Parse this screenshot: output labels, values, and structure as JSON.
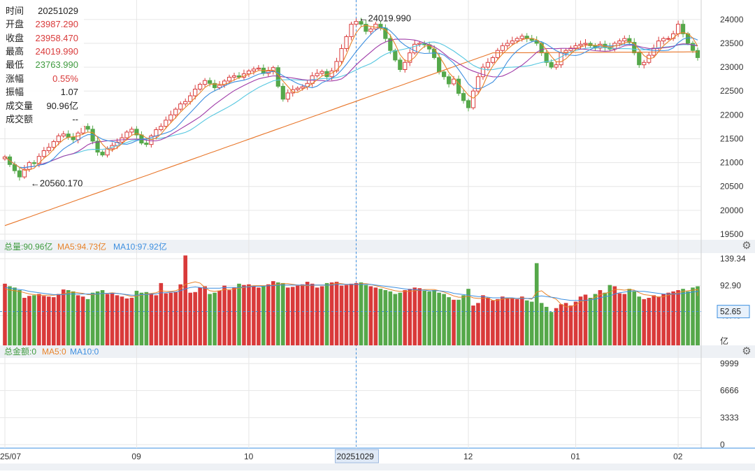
{
  "colors": {
    "up": "#d93a3a",
    "down": "#55a84a",
    "ma_orange": "#e8832a",
    "ma_blue": "#3d8fe0",
    "ma_purple": "#a03ca8",
    "ma_cyan": "#56c7e0",
    "ma_long": "#e8762a",
    "crosshair": "#3d8fe0",
    "grid": "#e6e6e6",
    "panel_bg": "#eef1f5"
  },
  "info_panel": {
    "rows": [
      {
        "label": "时间",
        "value": "20251029",
        "tone": "neutral"
      },
      {
        "label": "开盘",
        "value": "23987.290",
        "tone": "red"
      },
      {
        "label": "收盘",
        "value": "23958.470",
        "tone": "red"
      },
      {
        "label": "最高",
        "value": "24019.990",
        "tone": "red"
      },
      {
        "label": "最低",
        "value": "23763.990",
        "tone": "green"
      },
      {
        "label": "涨幅",
        "value": "0.55%",
        "tone": "red"
      },
      {
        "label": "振幅",
        "value": "1.07",
        "tone": "neutral"
      },
      {
        "label": "成交量",
        "value": "90.96亿",
        "tone": "neutral"
      },
      {
        "label": "成交额",
        "value": "--",
        "tone": "neutral"
      }
    ]
  },
  "volume_header": {
    "total": "总量:90.96亿",
    "ma5": "MA5:94.73亿",
    "ma10": "MA10:97.92亿"
  },
  "amount_header": {
    "total": "总金额:0",
    "ma5": "MA5:0",
    "ma10": "MA10:0"
  },
  "annotations": {
    "high": "24019.990",
    "low": "20560.170",
    "crosshair_date": "20251029",
    "volume_cursor": "52.65"
  },
  "chart_data": [
    {
      "type": "candlestick",
      "ylim": [
        19500,
        24100
      ],
      "y_ticks": [
        "24000",
        "23500",
        "23000",
        "22500",
        "22000",
        "21500",
        "21000",
        "20500",
        "20000",
        "19500"
      ],
      "x_tick_labels": [
        "25/07",
        "09",
        "10",
        "20251029",
        "12",
        "01",
        "02"
      ],
      "grid": true,
      "series_close": [
        21120,
        20960,
        20830,
        20700,
        20860,
        21000,
        20980,
        21130,
        21250,
        21320,
        21440,
        21560,
        21600,
        21530,
        21480,
        21620,
        21760,
        21700,
        21450,
        21220,
        21160,
        21290,
        21360,
        21430,
        21520,
        21640,
        21700,
        21580,
        21410,
        21380,
        21560,
        21690,
        21760,
        21890,
        22000,
        22120,
        22230,
        22280,
        22400,
        22540,
        22640,
        22720,
        22660,
        22570,
        22620,
        22710,
        22790,
        22820,
        22790,
        22860,
        22920,
        22960,
        22980,
        22870,
        22920,
        22990,
        22600,
        22330,
        22460,
        22530,
        22560,
        22590,
        22660,
        22820,
        22870,
        22910,
        22800,
        22920,
        23120,
        23390,
        23640,
        23900,
        23958,
        23900,
        23750,
        23800,
        23900,
        23820,
        23600,
        23350,
        23150,
        22950,
        23100,
        23300,
        23480,
        23500,
        23470,
        23380,
        23200,
        22900,
        22800,
        22650,
        22750,
        22450,
        22300,
        22150,
        22500,
        22800,
        23000,
        23100,
        23200,
        23350,
        23450,
        23500,
        23550,
        23600,
        23650,
        23600,
        23560,
        23500,
        23300,
        23100,
        23000,
        23050,
        23300,
        23350,
        23400,
        23450,
        23480,
        23500,
        23450,
        23400,
        23480,
        23420,
        23380,
        23500,
        23550,
        23600,
        23520,
        23300,
        23050,
        23100,
        23250,
        23400,
        23550,
        23600,
        23600,
        23700,
        23900,
        23700,
        23500,
        23350,
        23200
      ],
      "annotations": [
        "←24019.990",
        "←20560.170"
      ]
    },
    {
      "type": "bar",
      "title": "总量:90.96亿",
      "y_ticks": [
        "139.34",
        "92.90",
        "46.45",
        "亿"
      ],
      "ylim": [
        0,
        139.34
      ],
      "values": [
        96,
        92,
        90,
        86,
        74,
        77,
        78,
        80,
        77,
        76,
        75,
        80,
        87,
        86,
        84,
        78,
        76,
        72,
        82,
        84,
        86,
        80,
        81,
        78,
        76,
        73,
        74,
        85,
        82,
        83,
        80,
        78,
        97,
        81,
        82,
        83,
        95,
        140,
        82,
        83,
        90,
        92,
        80,
        82,
        85,
        93,
        86,
        90,
        96,
        94,
        95,
        92,
        90,
        93,
        95,
        100,
        98,
        97,
        90,
        91,
        93,
        95,
        99,
        96,
        90,
        92,
        97,
        98,
        99,
        93,
        94,
        96,
        97,
        98,
        94,
        92,
        90,
        88,
        86,
        84,
        80,
        82,
        86,
        88,
        90,
        89,
        85,
        84,
        86,
        82,
        80,
        75,
        71,
        71,
        78,
        88,
        62,
        66,
        78,
        74,
        70,
        72,
        76,
        74,
        73,
        72,
        76,
        70,
        68,
        128,
        66,
        60,
        52,
        58,
        64,
        66,
        62,
        68,
        76,
        79,
        74,
        80,
        86,
        82,
        94,
        92,
        81,
        80,
        88,
        84,
        76,
        72,
        74,
        78,
        76,
        80,
        82,
        84,
        86,
        88,
        84,
        90,
        86,
        92,
        85,
        34
      ],
      "ma5": [
        88,
        86,
        85,
        84,
        82,
        80,
        79,
        78,
        78,
        78,
        78,
        79,
        80,
        82,
        83,
        82,
        81,
        79,
        79,
        80,
        81,
        81,
        82,
        81,
        80,
        78,
        76,
        77,
        78,
        80,
        81,
        82,
        85,
        84,
        84,
        85,
        88,
        95,
        97,
        99,
        97,
        90,
        85,
        84,
        85,
        87,
        87,
        88,
        89,
        90,
        92,
        93,
        93,
        93,
        93,
        94,
        95,
        96,
        96,
        95,
        94,
        93,
        93,
        94,
        94,
        94,
        94,
        95,
        97,
        96,
        95,
        95,
        95,
        96,
        96,
        95,
        93,
        91,
        89,
        87,
        85,
        84,
        84,
        84,
        85,
        86,
        87,
        87,
        87,
        85,
        83,
        80,
        77,
        75,
        75,
        77,
        74,
        73,
        73,
        74,
        70,
        70,
        72,
        73,
        73,
        73,
        74,
        73,
        72,
        83,
        85,
        79,
        75,
        72,
        64,
        60,
        60,
        63,
        68,
        70,
        71,
        75,
        79,
        81,
        83,
        87,
        87,
        86,
        87,
        86,
        82,
        79,
        78,
        77,
        75,
        76,
        78,
        80,
        82,
        84,
        85,
        86,
        87,
        88,
        87,
        77
      ],
      "ma10": [
        90,
        89,
        88,
        87,
        86,
        84,
        83,
        82,
        81,
        80,
        79,
        79,
        79,
        80,
        80,
        80,
        80,
        80,
        80,
        80,
        81,
        81,
        81,
        81,
        80,
        79,
        78,
        78,
        79,
        79,
        80,
        80,
        82,
        82,
        83,
        83,
        85,
        88,
        90,
        91,
        90,
        89,
        89,
        89,
        89,
        90,
        90,
        90,
        90,
        91,
        91,
        92,
        92,
        92,
        93,
        93,
        94,
        94,
        94,
        94,
        94,
        94,
        94,
        94,
        94,
        94,
        94,
        94,
        95,
        95,
        95,
        95,
        95,
        95,
        95,
        95,
        94,
        93,
        92,
        91,
        90,
        89,
        88,
        87,
        87,
        86,
        86,
        85,
        85,
        85,
        84,
        83,
        81,
        80,
        79,
        78,
        77,
        76,
        76,
        75,
        74,
        74,
        74,
        74,
        74,
        73,
        73,
        73,
        73,
        76,
        77,
        76,
        75,
        74,
        72,
        71,
        70,
        70,
        70,
        70,
        71,
        72,
        74,
        76,
        77,
        80,
        82,
        83,
        84,
        85,
        84,
        84,
        83,
        82,
        81,
        80,
        80,
        80,
        80,
        81,
        82,
        83,
        84,
        85,
        85,
        83
      ]
    },
    {
      "type": "line",
      "title": "总金额:0",
      "y_ticks": [
        "9999",
        "6666",
        "3333",
        "0"
      ],
      "ylim": [
        0,
        9999
      ]
    }
  ]
}
